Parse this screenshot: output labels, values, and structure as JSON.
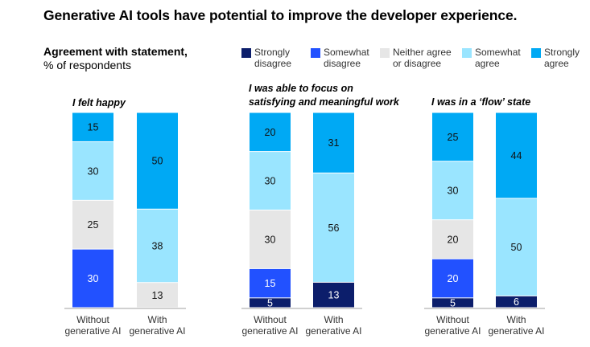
{
  "title": "Generative AI tools have potential to improve the developer experience.",
  "subtitle_bold": "Agreement with statement,",
  "subtitle": "% of respondents",
  "legend": [
    {
      "label": "Strongly\ndisagree",
      "color": "#0c1e6b"
    },
    {
      "label": "Somewhat\ndisagree",
      "color": "#2251ff"
    },
    {
      "label": "Neither agree\nor disagree",
      "color": "#e6e6e6"
    },
    {
      "label": "Somewhat\nagree",
      "color": "#9ae5ff"
    },
    {
      "label": "Strongly\nagree",
      "color": "#00a9f4"
    }
  ],
  "chart_data": {
    "type": "stacked-bar",
    "categories": [
      "Without generative AI",
      "With generative AI"
    ],
    "series_names": [
      "Strongly disagree",
      "Somewhat disagree",
      "Neither agree or disagree",
      "Somewhat agree",
      "Strongly agree"
    ],
    "panels": [
      {
        "title": "I felt happy",
        "bars": [
          [
            0,
            30,
            25,
            30,
            15
          ],
          [
            0,
            0,
            13,
            38,
            50
          ]
        ]
      },
      {
        "title": "I was able to focus on\nsatisfying and meaningful work",
        "bars": [
          [
            5,
            15,
            30,
            30,
            20
          ],
          [
            13,
            0,
            0,
            56,
            31
          ]
        ]
      },
      {
        "title": "I was in a ‘flow’ state",
        "bars": [
          [
            5,
            20,
            20,
            30,
            25
          ],
          [
            6,
            0,
            0,
            50,
            44
          ]
        ]
      }
    ],
    "xlabels": [
      [
        "Without",
        "generative AI"
      ],
      [
        "With",
        "generative AI"
      ]
    ]
  }
}
